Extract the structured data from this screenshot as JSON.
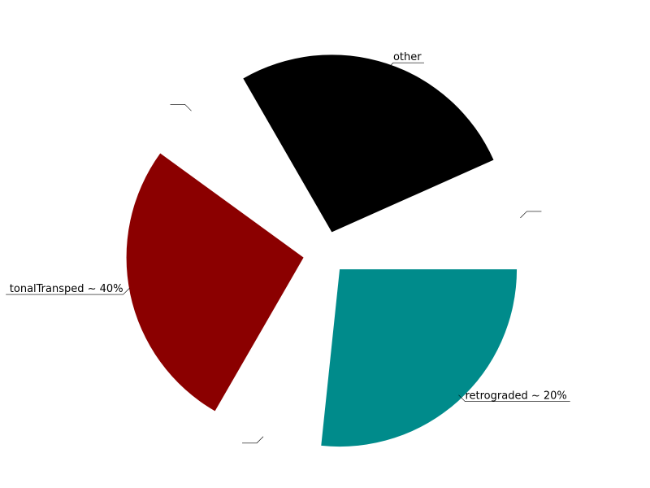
{
  "chart_data": {
    "type": "pie",
    "title": "",
    "slices": [
      {
        "label": "",
        "value": 1,
        "color": "#ffffff"
      },
      {
        "label": "other",
        "value": 4,
        "color": "#000000"
      },
      {
        "label": "",
        "value": 1,
        "color": "#ffffff"
      },
      {
        "label": "tonalTransped ~ 40%",
        "value": 4,
        "color": "#8b0000"
      },
      {
        "label": "",
        "value": 1,
        "color": "#ffffff"
      },
      {
        "label": "retrograded ~ 20%",
        "value": 4,
        "color": "#008b8b"
      }
    ],
    "legend": "none"
  }
}
